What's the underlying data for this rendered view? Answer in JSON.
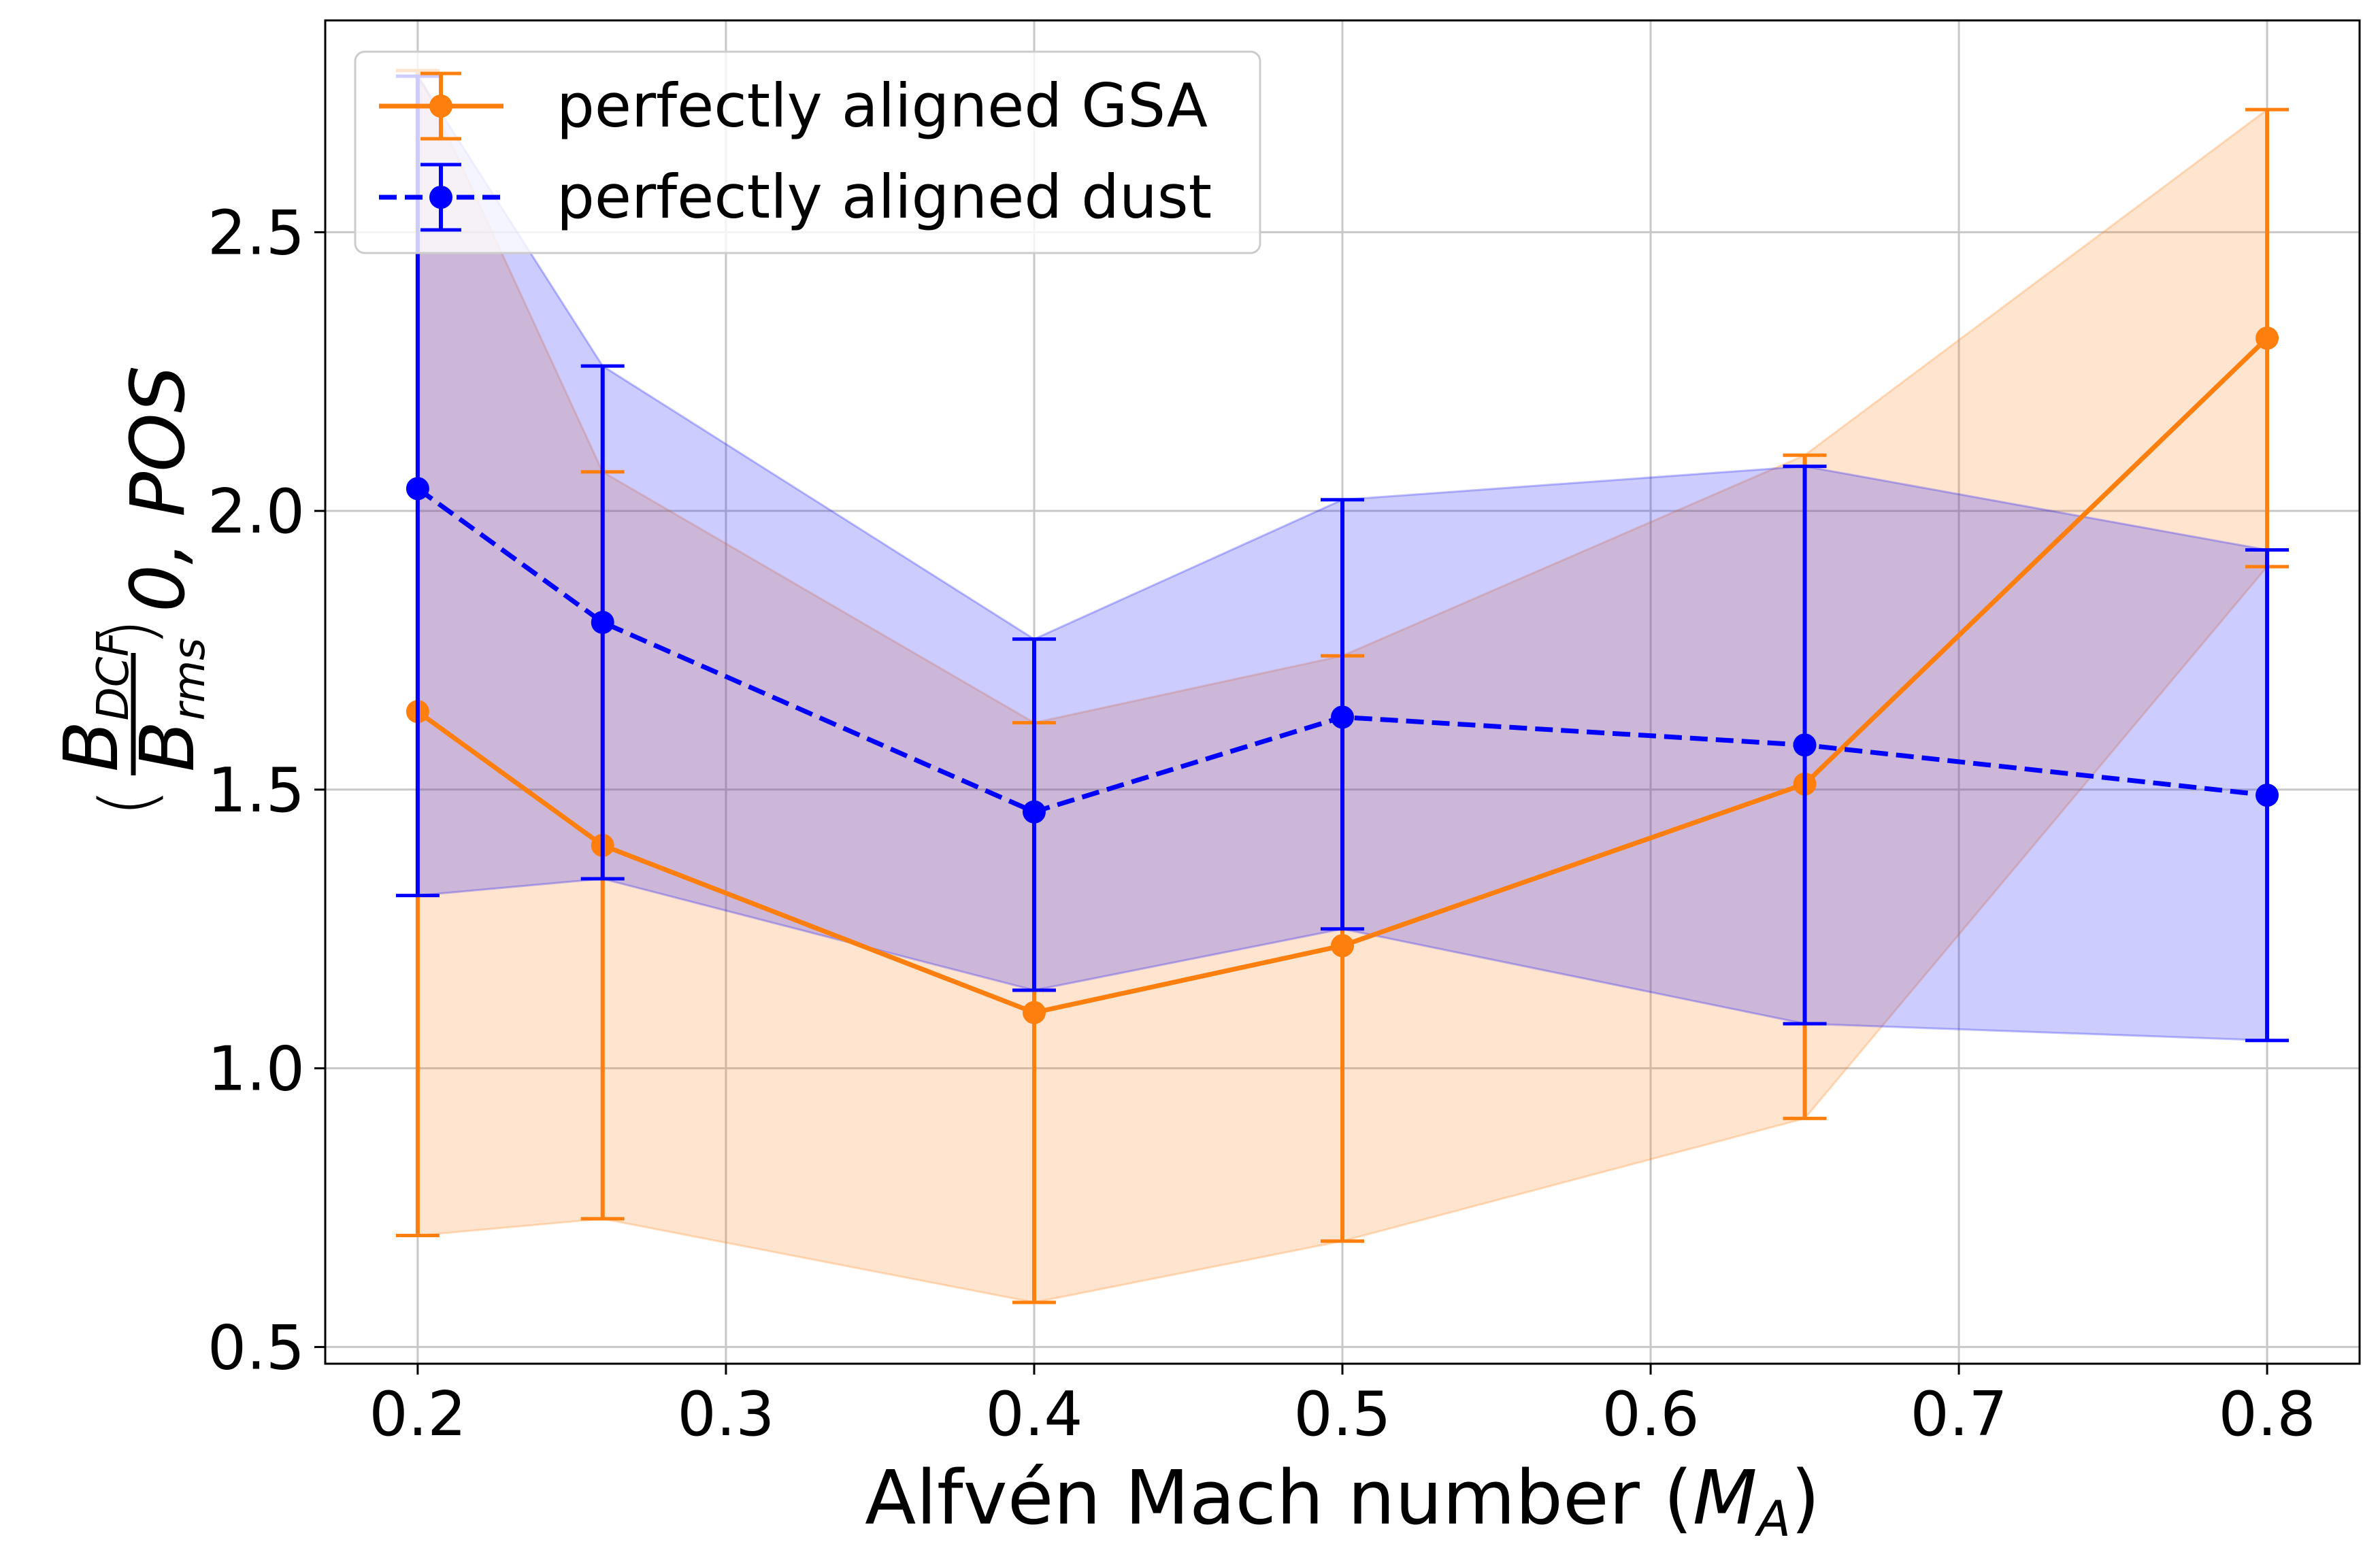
{
  "chart_data": {
    "type": "line",
    "xlabel": "Alfvén Mach number (",
    "xlabel_symbol": "M",
    "xlabel_sub": "A",
    "xlabel_close": ")",
    "ylabel": {
      "numerator": "B",
      "numerator_sub": "DCF",
      "denominator": "B",
      "denominator_sub": "rms",
      "subscript": "0, POS"
    },
    "xlim": [
      0.17,
      0.83
    ],
    "ylim": [
      0.47,
      2.88
    ],
    "xticks": [
      0.2,
      0.3,
      0.4,
      0.5,
      0.6,
      0.7,
      0.8
    ],
    "xtick_labels": [
      "0.2",
      "0.3",
      "0.4",
      "0.5",
      "0.6",
      "0.7",
      "0.8"
    ],
    "yticks": [
      0.5,
      1.0,
      1.5,
      2.0,
      2.5
    ],
    "ytick_labels": [
      "0.5",
      "1.0",
      "1.5",
      "2.0",
      "2.5"
    ],
    "grid": true,
    "legend_position": "top-left",
    "series": [
      {
        "name": "perfectly aligned GSA",
        "color": "#ff7f0e",
        "linestyle": "solid",
        "x": [
          0.2,
          0.26,
          0.4,
          0.5,
          0.65,
          0.8
        ],
        "y": [
          1.64,
          1.4,
          1.1,
          1.22,
          1.51,
          2.31
        ],
        "lower": [
          0.7,
          0.73,
          0.58,
          0.69,
          0.91,
          1.9
        ],
        "upper": [
          2.79,
          2.07,
          1.62,
          1.74,
          2.1,
          2.72
        ]
      },
      {
        "name": "perfectly aligned dust",
        "color": "#0000ff",
        "linestyle": "dashed",
        "x": [
          0.2,
          0.26,
          0.4,
          0.5,
          0.65,
          0.8
        ],
        "y": [
          2.04,
          1.8,
          1.46,
          1.63,
          1.58,
          1.49
        ],
        "lower": [
          1.31,
          1.34,
          1.14,
          1.25,
          1.08,
          1.05
        ],
        "upper": [
          2.78,
          2.26,
          1.77,
          2.02,
          2.08,
          1.93
        ]
      }
    ]
  }
}
